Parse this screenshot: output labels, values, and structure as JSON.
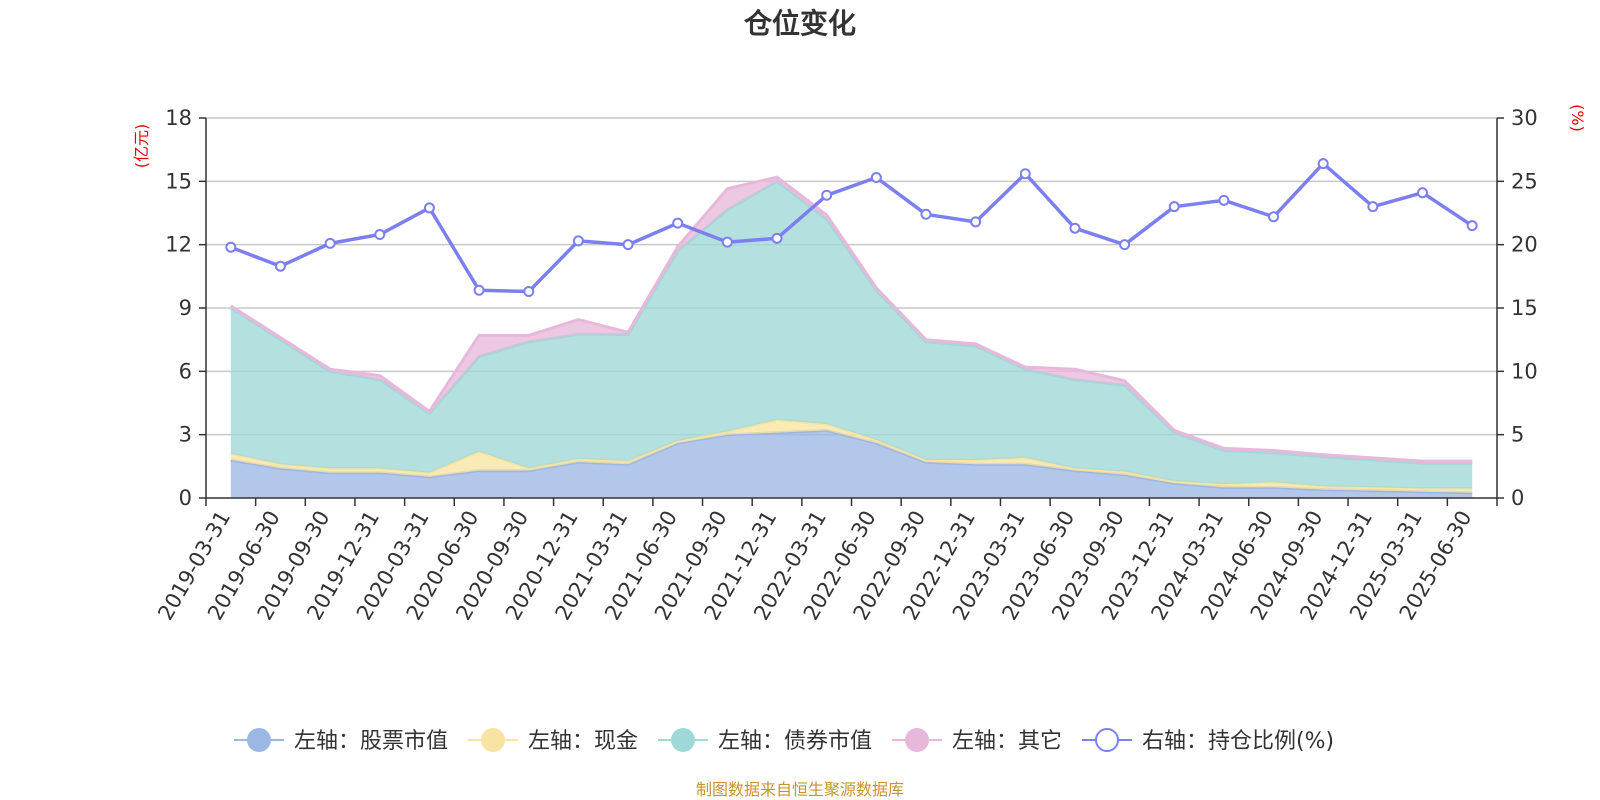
{
  "chart_data": {
    "type": "area",
    "title": "仓位变化",
    "left_unit": "(亿元)",
    "right_unit": "(%)",
    "source": "制图数据来自恒生聚源数据库",
    "categories": [
      "2019-03-31",
      "2019-06-30",
      "2019-09-30",
      "2019-12-31",
      "2020-03-31",
      "2020-06-30",
      "2020-09-30",
      "2020-12-31",
      "2021-03-31",
      "2021-06-30",
      "2021-09-30",
      "2021-12-31",
      "2022-03-31",
      "2022-06-30",
      "2022-09-30",
      "2022-12-31",
      "2023-03-31",
      "2023-06-30",
      "2023-09-30",
      "2023-12-31",
      "2024-03-31",
      "2024-06-30",
      "2024-09-30",
      "2024-12-31",
      "2025-03-31",
      "2025-06-30"
    ],
    "left_axis": {
      "ticks": [
        0,
        3,
        6,
        9,
        12,
        15,
        18
      ],
      "ylim": [
        0,
        18
      ]
    },
    "right_axis": {
      "ticks": [
        0,
        5,
        10,
        15,
        20,
        25,
        30
      ],
      "ylim": [
        0,
        30
      ]
    },
    "grid": true,
    "legend_position": "bottom",
    "stacked_series": [
      {
        "name": "左轴：股票市值",
        "color": "#9cb7e3",
        "values": [
          1.8,
          1.4,
          1.2,
          1.2,
          1.0,
          1.3,
          1.3,
          1.7,
          1.6,
          2.6,
          3.0,
          3.1,
          3.2,
          2.6,
          1.7,
          1.6,
          1.6,
          1.3,
          1.1,
          0.7,
          0.5,
          0.5,
          0.4,
          0.35,
          0.3,
          0.25
        ]
      },
      {
        "name": "左轴：现金",
        "color": "#f8e4a2",
        "values": [
          0.3,
          0.2,
          0.2,
          0.2,
          0.2,
          0.9,
          0.1,
          0.15,
          0.15,
          0.1,
          0.15,
          0.6,
          0.3,
          0.15,
          0.1,
          0.2,
          0.3,
          0.1,
          0.15,
          0.1,
          0.15,
          0.25,
          0.15,
          0.15,
          0.15,
          0.2
        ]
      },
      {
        "name": "左轴：债券市值",
        "color": "#9fd9d7",
        "values": [
          6.9,
          5.9,
          4.6,
          4.2,
          2.8,
          4.5,
          6.0,
          5.9,
          6.0,
          9.0,
          10.5,
          11.3,
          9.7,
          7.1,
          5.6,
          5.4,
          4.2,
          4.2,
          4.1,
          2.3,
          1.6,
          1.4,
          1.4,
          1.3,
          1.2,
          1.2
        ]
      },
      {
        "name": "左轴：其它",
        "color": "#e8b8da",
        "values": [
          0.1,
          0.1,
          0.1,
          0.2,
          0.1,
          1.0,
          0.3,
          0.7,
          0.1,
          0.2,
          1.0,
          0.2,
          0.2,
          0.1,
          0.1,
          0.1,
          0.1,
          0.5,
          0.2,
          0.1,
          0.1,
          0.1,
          0.1,
          0.1,
          0.1,
          0.1
        ]
      }
    ],
    "line_series": {
      "name": "右轴：持仓比例(%)",
      "color": "#7b7ff0",
      "values": [
        19.8,
        18.3,
        20.1,
        20.8,
        22.9,
        16.4,
        16.3,
        20.3,
        20.0,
        21.7,
        20.2,
        20.5,
        23.9,
        25.3,
        22.4,
        21.8,
        25.6,
        21.3,
        20.0,
        23.0,
        23.5,
        22.2,
        26.4,
        23.0,
        24.1,
        21.5
      ]
    }
  }
}
